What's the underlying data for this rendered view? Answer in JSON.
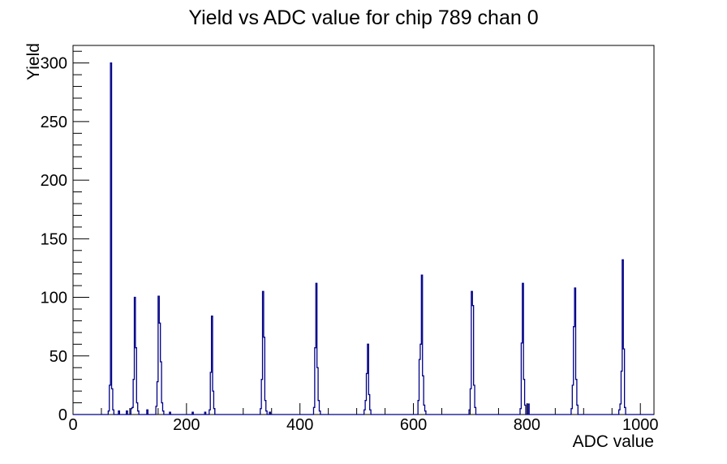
{
  "chart_data": {
    "type": "bar",
    "title": "Yield vs ADC value for chip 789 chan 0",
    "xlabel": "ADC value",
    "ylabel": "Yield",
    "xlim": [
      0,
      1024
    ],
    "ylim": [
      0,
      315
    ],
    "x_major_ticks": [
      0,
      200,
      400,
      600,
      800,
      1000
    ],
    "x_minor_step": 50,
    "y_major_ticks": [
      0,
      50,
      100,
      150,
      200,
      250,
      300
    ],
    "y_minor_step": 10,
    "grid": false,
    "legend": "none",
    "line_color": "#000087",
    "axis_color": "#000000",
    "bin_width": 2,
    "bins": [
      [
        63,
        3
      ],
      [
        65,
        25
      ],
      [
        67,
        300
      ],
      [
        69,
        22
      ],
      [
        71,
        4
      ],
      [
        81,
        3
      ],
      [
        95,
        3
      ],
      [
        103,
        5
      ],
      [
        105,
        6
      ],
      [
        107,
        30
      ],
      [
        109,
        100
      ],
      [
        111,
        57
      ],
      [
        113,
        10
      ],
      [
        115,
        3
      ],
      [
        131,
        4
      ],
      [
        147,
        7
      ],
      [
        149,
        28
      ],
      [
        151,
        101
      ],
      [
        153,
        78
      ],
      [
        155,
        45
      ],
      [
        157,
        10
      ],
      [
        159,
        3
      ],
      [
        171,
        2
      ],
      [
        211,
        2
      ],
      [
        233,
        2
      ],
      [
        241,
        4
      ],
      [
        243,
        36
      ],
      [
        245,
        84
      ],
      [
        247,
        20
      ],
      [
        249,
        5
      ],
      [
        331,
        5
      ],
      [
        333,
        30
      ],
      [
        335,
        105
      ],
      [
        337,
        66
      ],
      [
        339,
        12
      ],
      [
        341,
        3
      ],
      [
        347,
        2
      ],
      [
        425,
        6
      ],
      [
        427,
        57
      ],
      [
        429,
        112
      ],
      [
        431,
        40
      ],
      [
        433,
        12
      ],
      [
        435,
        3
      ],
      [
        514,
        4
      ],
      [
        516,
        12
      ],
      [
        518,
        35
      ],
      [
        520,
        60
      ],
      [
        522,
        17
      ],
      [
        524,
        4
      ],
      [
        609,
        12
      ],
      [
        611,
        47
      ],
      [
        613,
        60
      ],
      [
        615,
        119
      ],
      [
        617,
        33
      ],
      [
        619,
        8
      ],
      [
        621,
        3
      ],
      [
        699,
        4
      ],
      [
        701,
        22
      ],
      [
        703,
        105
      ],
      [
        705,
        93
      ],
      [
        707,
        25
      ],
      [
        709,
        6
      ],
      [
        789,
        5
      ],
      [
        791,
        61
      ],
      [
        793,
        112
      ],
      [
        795,
        30
      ],
      [
        797,
        8
      ],
      [
        803,
        9
      ],
      [
        879,
        5
      ],
      [
        881,
        25
      ],
      [
        883,
        75
      ],
      [
        885,
        108
      ],
      [
        887,
        30
      ],
      [
        889,
        8
      ],
      [
        963,
        4
      ],
      [
        965,
        9
      ],
      [
        967,
        37
      ],
      [
        969,
        132
      ],
      [
        971,
        56
      ],
      [
        973,
        6
      ]
    ]
  }
}
